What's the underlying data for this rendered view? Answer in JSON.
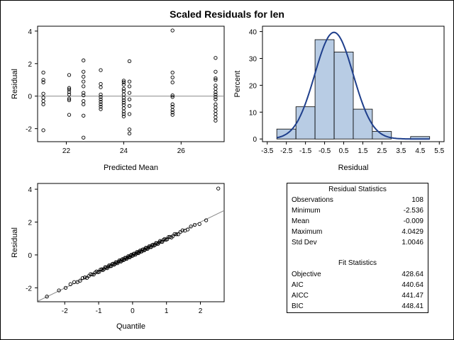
{
  "title": "Scaled Residuals for len",
  "chart_data": [
    {
      "type": "scatter",
      "name": "residual-vs-predicted",
      "xlabel": "Predicted Mean",
      "ylabel": "Residual",
      "xlim": [
        21.0,
        27.5
      ],
      "ylim": [
        -2.8,
        4.3
      ],
      "xticks": [
        22,
        24,
        26
      ],
      "yticks": [
        -2,
        0,
        2,
        4
      ],
      "reference_line_y": 0,
      "points": [
        [
          21.2,
          1.45
        ],
        [
          21.2,
          1.0
        ],
        [
          21.2,
          0.85
        ],
        [
          21.2,
          0.15
        ],
        [
          21.2,
          -0.1
        ],
        [
          21.2,
          -0.3
        ],
        [
          21.2,
          -0.5
        ],
        [
          21.2,
          -2.1
        ],
        [
          22.1,
          1.3
        ],
        [
          22.1,
          0.5
        ],
        [
          22.1,
          0.4
        ],
        [
          22.1,
          0.25
        ],
        [
          22.1,
          0.1
        ],
        [
          22.1,
          -0.15
        ],
        [
          22.1,
          -0.25
        ],
        [
          22.1,
          -1.15
        ],
        [
          22.6,
          2.2
        ],
        [
          22.6,
          1.5
        ],
        [
          22.6,
          1.2
        ],
        [
          22.6,
          0.9
        ],
        [
          22.6,
          0.6
        ],
        [
          22.6,
          0.2
        ],
        [
          22.6,
          0.05
        ],
        [
          22.6,
          -0.3
        ],
        [
          22.6,
          -0.5
        ],
        [
          22.6,
          -1.2
        ],
        [
          22.6,
          -2.55
        ],
        [
          23.2,
          1.6
        ],
        [
          23.2,
          0.75
        ],
        [
          23.2,
          0.55
        ],
        [
          23.2,
          0.1
        ],
        [
          23.2,
          -0.05
        ],
        [
          23.2,
          -0.2
        ],
        [
          23.2,
          -0.35
        ],
        [
          23.2,
          -0.5
        ],
        [
          23.2,
          -0.65
        ],
        [
          23.2,
          -0.8
        ],
        [
          24.0,
          0.95
        ],
        [
          24.0,
          0.85
        ],
        [
          24.0,
          0.7
        ],
        [
          24.0,
          0.45
        ],
        [
          24.0,
          0.3
        ],
        [
          24.0,
          0.1
        ],
        [
          24.0,
          -0.1
        ],
        [
          24.0,
          -0.25
        ],
        [
          24.0,
          -0.4
        ],
        [
          24.0,
          -0.55
        ],
        [
          24.0,
          -0.75
        ],
        [
          24.0,
          -0.95
        ],
        [
          24.0,
          -1.1
        ],
        [
          24.0,
          -1.25
        ],
        [
          24.2,
          2.15
        ],
        [
          24.2,
          0.9
        ],
        [
          24.2,
          0.6
        ],
        [
          24.2,
          0.2
        ],
        [
          24.2,
          -0.2
        ],
        [
          24.2,
          -0.6
        ],
        [
          24.2,
          -1.1
        ],
        [
          24.2,
          -2.05
        ],
        [
          24.2,
          -2.3
        ],
        [
          25.7,
          4.04
        ],
        [
          25.7,
          1.45
        ],
        [
          25.7,
          1.15
        ],
        [
          25.7,
          0.85
        ],
        [
          25.7,
          0.05
        ],
        [
          25.7,
          -0.05
        ],
        [
          25.7,
          -0.5
        ],
        [
          25.7,
          -0.65
        ],
        [
          25.7,
          -0.85
        ],
        [
          25.7,
          -1.0
        ],
        [
          25.7,
          -1.15
        ],
        [
          27.2,
          2.35
        ],
        [
          27.2,
          1.5
        ],
        [
          27.2,
          1.1
        ],
        [
          27.2,
          1.0
        ],
        [
          27.2,
          0.65
        ],
        [
          27.2,
          0.45
        ],
        [
          27.2,
          0.25
        ],
        [
          27.2,
          0.1
        ],
        [
          27.2,
          -0.05
        ],
        [
          27.2,
          -0.2
        ],
        [
          27.2,
          -0.5
        ],
        [
          27.2,
          -0.7
        ],
        [
          27.2,
          -0.9
        ],
        [
          27.2,
          -1.1
        ],
        [
          27.2,
          -1.3
        ],
        [
          27.2,
          -1.5
        ]
      ]
    },
    {
      "type": "bar",
      "name": "residual-histogram",
      "xlabel": "Residual",
      "ylabel": "Percent",
      "xlim": [
        -3.75,
        5.75
      ],
      "ylim": [
        -1.0,
        42.0
      ],
      "xticks": [
        "-3.5",
        "-2.5",
        "-1.5",
        "-0.5",
        "0.5",
        "1.5",
        "2.5",
        "3.5",
        "4.5",
        "5.5"
      ],
      "yticks": [
        0,
        10,
        20,
        30,
        40
      ],
      "bins": [
        {
          "from": -3.0,
          "to": -2.0,
          "percent": 3.7
        },
        {
          "from": -2.0,
          "to": -1.0,
          "percent": 12.0
        },
        {
          "from": -1.0,
          "to": 0.0,
          "percent": 37.0
        },
        {
          "from": 0.0,
          "to": 1.0,
          "percent": 32.4
        },
        {
          "from": 1.0,
          "to": 2.0,
          "percent": 11.1
        },
        {
          "from": 2.0,
          "to": 3.0,
          "percent": 2.8
        },
        {
          "from": 3.0,
          "to": 4.0,
          "percent": 0.0
        },
        {
          "from": 4.0,
          "to": 5.0,
          "percent": 0.9
        }
      ],
      "normal_curve": {
        "mean": -0.009,
        "std": 1.0046,
        "bin_width": 1.0
      },
      "colors": {
        "bar_fill": "#b8cce4",
        "curve": "#1f3f8c"
      }
    },
    {
      "type": "scatter",
      "name": "qq-plot",
      "xlabel": "Quantile",
      "ylabel": "Residual",
      "xlim": [
        -2.8,
        2.7
      ],
      "ylim": [
        -2.85,
        4.35
      ],
      "xticks": [
        -2,
        -1,
        0,
        1,
        2
      ],
      "yticks": [
        -2,
        0,
        2,
        4
      ],
      "reference_line": {
        "intercept": -0.009,
        "slope": 1.0046
      },
      "sample_size": 108,
      "min_residual": -2.536,
      "max_residual": 4.0429,
      "mean": -0.009,
      "std": 1.0046
    }
  ],
  "stats": {
    "residual_title": "Residual Statistics",
    "residual_rows": [
      {
        "label": "Observations",
        "value": "108"
      },
      {
        "label": "Minimum",
        "value": "-2.536"
      },
      {
        "label": "Mean",
        "value": "-0.009"
      },
      {
        "label": "Maximum",
        "value": "4.0429"
      },
      {
        "label": "Std Dev",
        "value": "1.0046"
      }
    ],
    "fit_title": "Fit Statistics",
    "fit_rows": [
      {
        "label": "Objective",
        "value": "428.64"
      },
      {
        "label": "AIC",
        "value": "440.64"
      },
      {
        "label": "AICC",
        "value": "441.47"
      },
      {
        "label": "BIC",
        "value": "448.41"
      }
    ]
  }
}
